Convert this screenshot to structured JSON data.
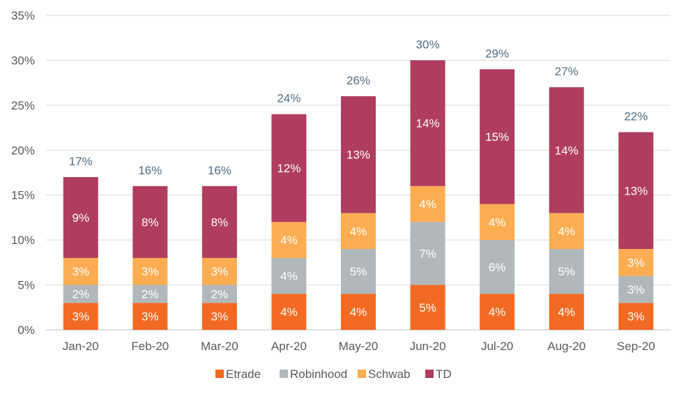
{
  "chart_data": {
    "type": "bar",
    "stacked": true,
    "categories": [
      "Jan-20",
      "Feb-20",
      "Mar-20",
      "Apr-20",
      "May-20",
      "Jun-20",
      "Jul-20",
      "Aug-20",
      "Sep-20"
    ],
    "series": [
      {
        "name": "Etrade",
        "color": "#f26a22",
        "values": [
          3,
          3,
          3,
          4,
          4,
          5,
          4,
          4,
          3
        ]
      },
      {
        "name": "Robinhood",
        "color": "#b1b7bb",
        "values": [
          2,
          2,
          2,
          4,
          5,
          7,
          6,
          5,
          3
        ]
      },
      {
        "name": "Schwab",
        "color": "#fcad52",
        "values": [
          3,
          3,
          3,
          4,
          4,
          4,
          4,
          4,
          3
        ]
      },
      {
        "name": "TD",
        "color": "#b03d5f",
        "values": [
          9,
          8,
          8,
          12,
          13,
          14,
          15,
          14,
          13
        ]
      }
    ],
    "totals": [
      17,
      16,
      16,
      24,
      26,
      30,
      29,
      27,
      22
    ],
    "totals_labels": [
      "17%",
      "16%",
      "16%",
      "24%",
      "26%",
      "30%",
      "29%",
      "27%",
      "22%"
    ],
    "segment_labels": [
      [
        "3%",
        "3%",
        "3%",
        "4%",
        "4%",
        "5%",
        "4%",
        "4%",
        "3%"
      ],
      [
        "2%",
        "2%",
        "2%",
        "4%",
        "5%",
        "7%",
        "6%",
        "5%",
        "3%"
      ],
      [
        "3%",
        "3%",
        "3%",
        "4%",
        "4%",
        "4%",
        "4%",
        "4%",
        "3%"
      ],
      [
        "9%",
        "8%",
        "8%",
        "12%",
        "13%",
        "14%",
        "15%",
        "14%",
        "13%"
      ]
    ],
    "ylim": [
      0,
      35
    ],
    "yticks": [
      0,
      5,
      10,
      15,
      20,
      25,
      30,
      35
    ],
    "ytick_labels": [
      "0%",
      "5%",
      "10%",
      "15%",
      "20%",
      "25%",
      "30%",
      "35%"
    ],
    "grid": true,
    "legend_position": "bottom",
    "title": "",
    "xlabel": "",
    "ylabel": ""
  }
}
